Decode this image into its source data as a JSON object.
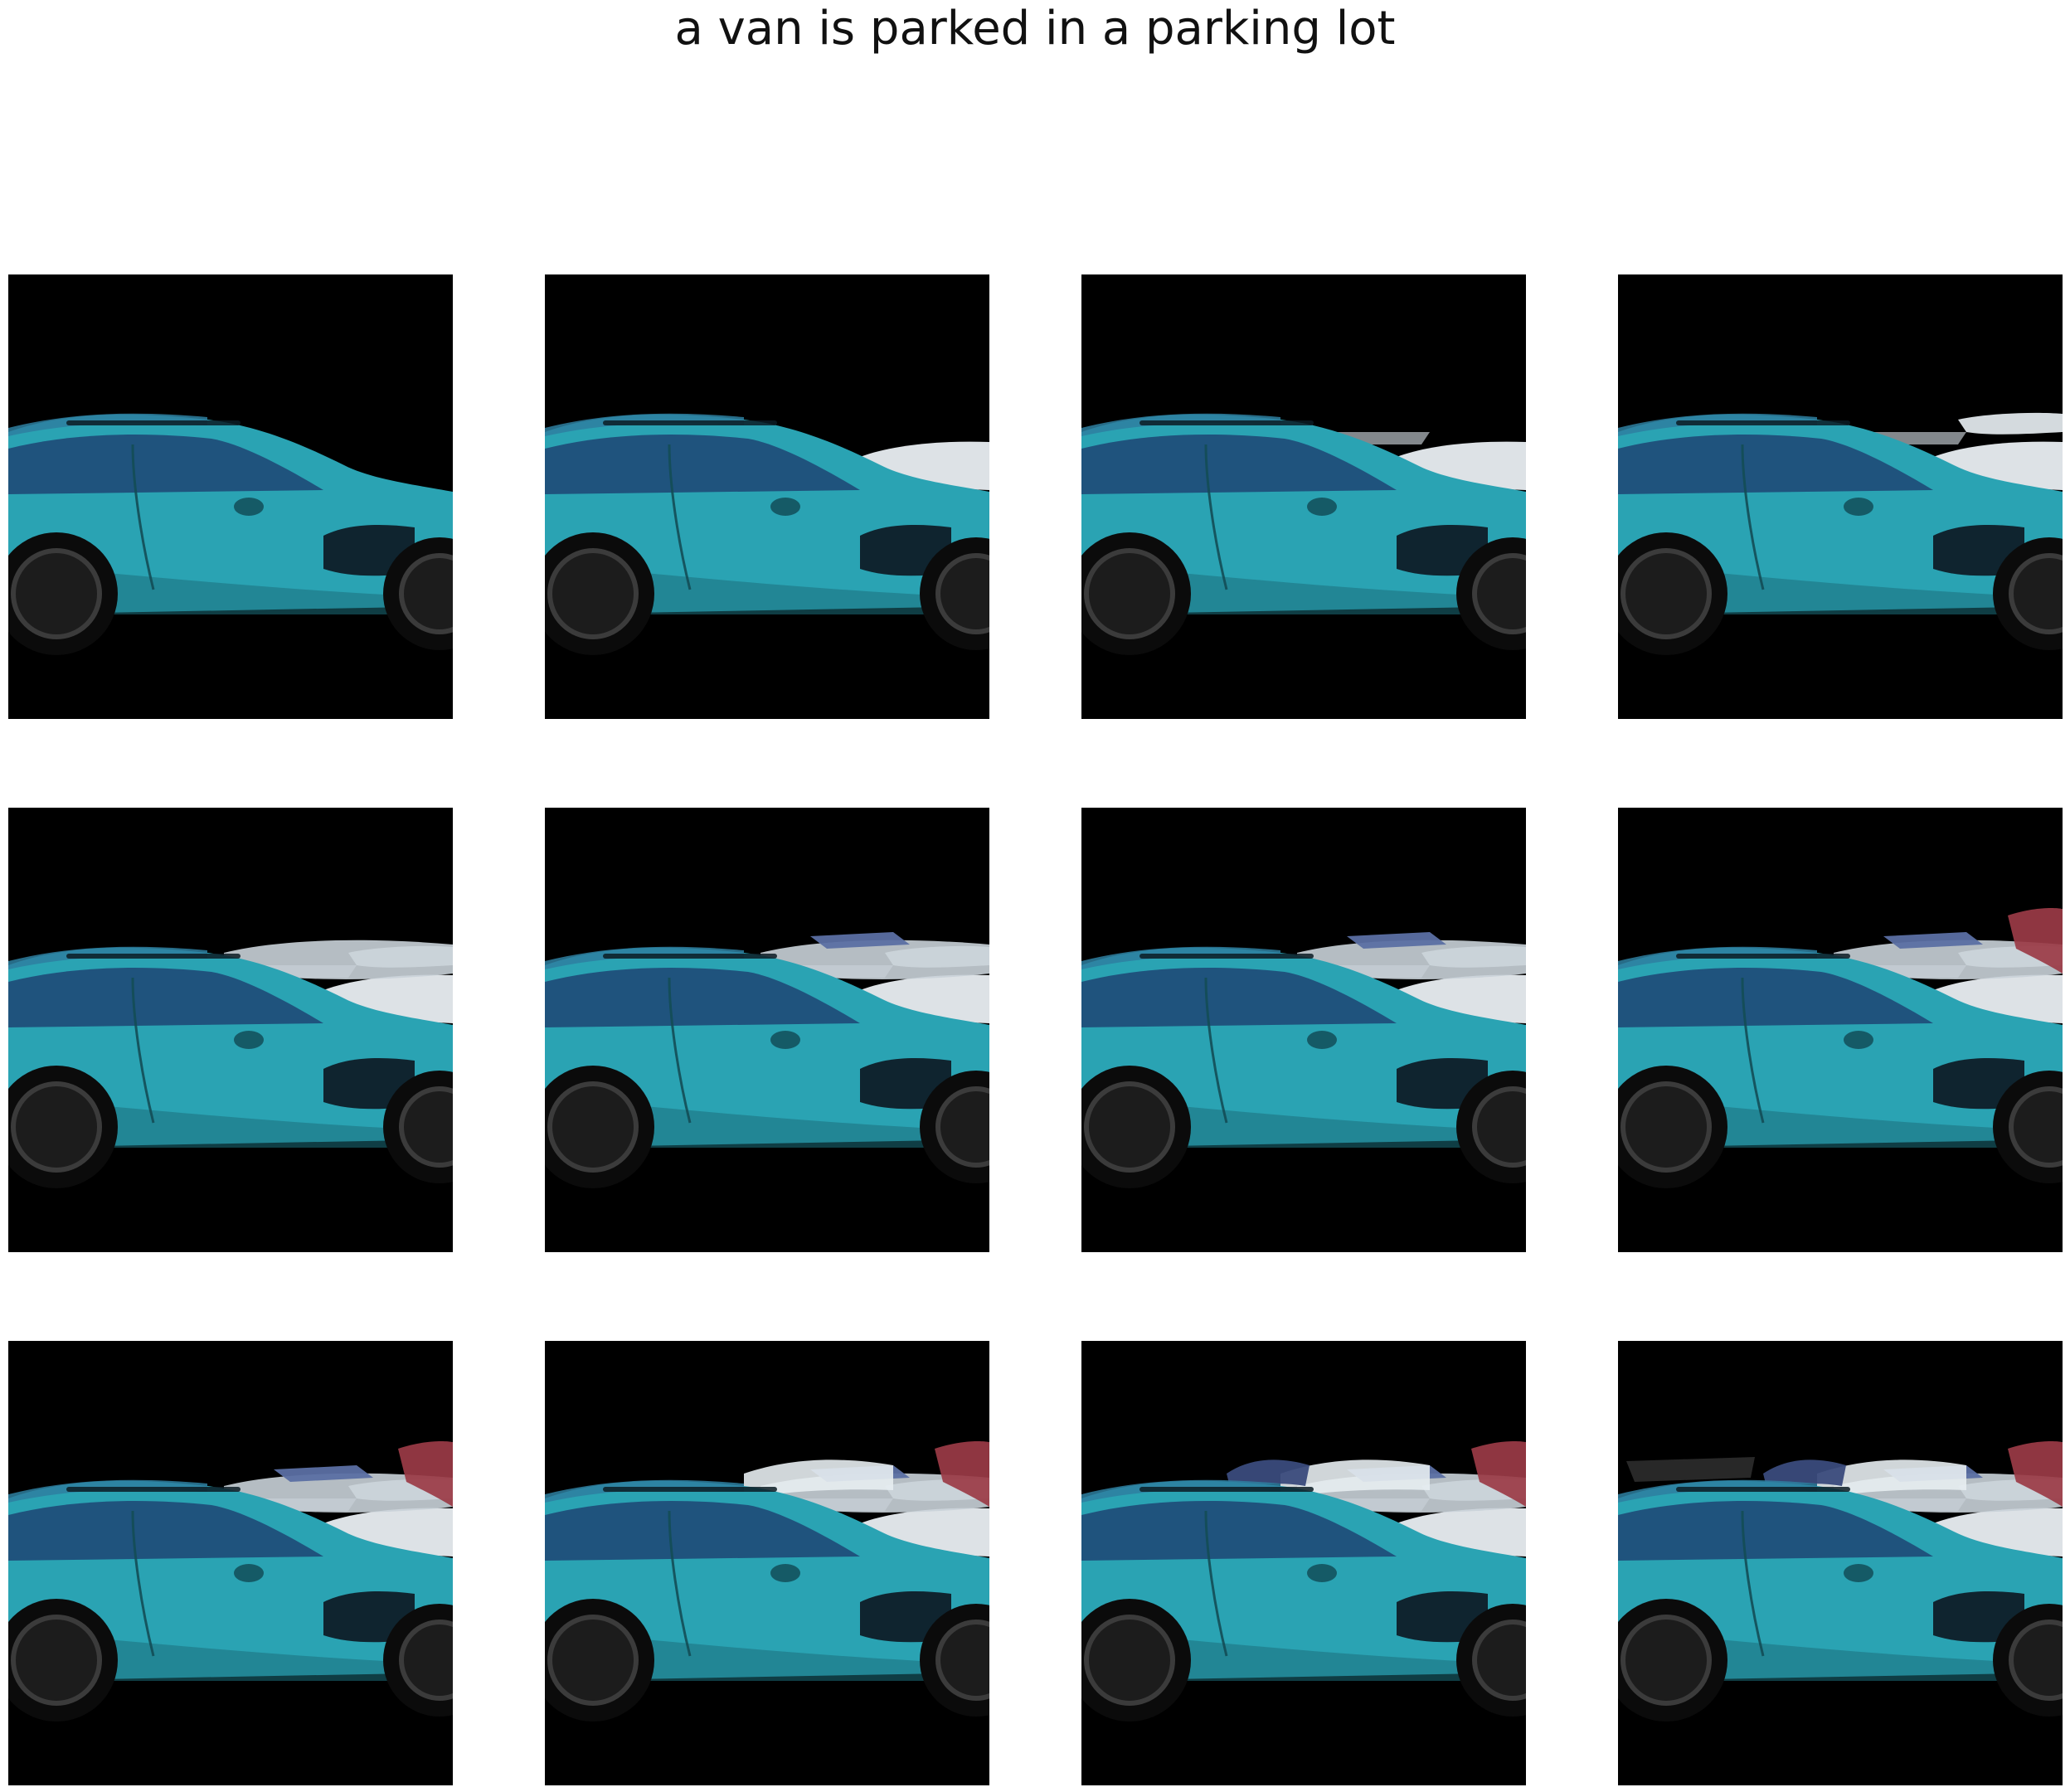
{
  "title": "a van is parked in a parking lot",
  "grid": {
    "rows": 3,
    "cols": 4
  },
  "colors": {
    "background": "#ffffff",
    "frame_bg": "#000000",
    "car_body": "#2aa3b3",
    "car_dark": "#1b6f7b",
    "window": "#1f4f7a",
    "tire": "#0b0b0b",
    "rim": "#1c1c1c",
    "artifact_white": "#e9eef2",
    "artifact_blue": "#5b6fa3",
    "artifact_red": "#9b3b46",
    "artifact_gray": "#8a8f93"
  },
  "frames": [
    {
      "index": 1,
      "overlays": []
    },
    {
      "index": 2,
      "overlays": [
        "white-car-right"
      ]
    },
    {
      "index": 3,
      "overlays": [
        "white-car-right",
        "gray-bar"
      ]
    },
    {
      "index": 4,
      "overlays": [
        "white-car-right",
        "gray-bar",
        "white-top-right"
      ]
    },
    {
      "index": 5,
      "overlays": [
        "white-car-right",
        "gray-bar",
        "white-top-right",
        "mixed-cluster"
      ]
    },
    {
      "index": 6,
      "overlays": [
        "white-car-right",
        "gray-bar",
        "white-top-right",
        "mixed-cluster",
        "blue-panel"
      ]
    },
    {
      "index": 7,
      "overlays": [
        "white-car-right",
        "gray-bar",
        "white-top-right",
        "mixed-cluster",
        "blue-panel"
      ]
    },
    {
      "index": 8,
      "overlays": [
        "white-car-right",
        "gray-bar",
        "white-top-right",
        "mixed-cluster",
        "blue-panel",
        "red-top-right"
      ]
    },
    {
      "index": 9,
      "overlays": [
        "white-car-right",
        "gray-bar",
        "white-top-right",
        "mixed-cluster",
        "blue-panel",
        "red-top-right"
      ]
    },
    {
      "index": 10,
      "overlays": [
        "white-car-right",
        "gray-bar",
        "white-top-right",
        "mixed-cluster",
        "blue-panel",
        "red-top-right",
        "white-cluster-2"
      ]
    },
    {
      "index": 11,
      "overlays": [
        "white-car-right",
        "gray-bar",
        "white-top-right",
        "mixed-cluster",
        "blue-panel",
        "red-top-right",
        "white-cluster-2",
        "blue-car-left"
      ]
    },
    {
      "index": 12,
      "overlays": [
        "white-car-right",
        "gray-bar",
        "white-top-right",
        "mixed-cluster",
        "blue-panel",
        "red-top-right",
        "white-cluster-2",
        "blue-car-left",
        "long-dark-bar"
      ]
    }
  ]
}
